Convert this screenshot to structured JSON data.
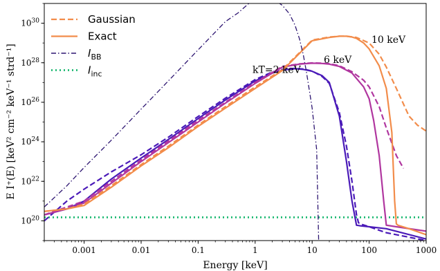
{
  "chart_data": {
    "type": "line",
    "title": "",
    "xlabel": "Energy [keV]",
    "ylabel": "E I⁺(E)  [keV² cm⁻² keV⁻¹ strd⁻¹]",
    "xscale": "log",
    "yscale": "log",
    "xlim": [
      0.0002,
      1000
    ],
    "ylim": [
      1e+19,
      1e+31
    ],
    "xticks": [
      {
        "value": 0.001,
        "label": "0.001"
      },
      {
        "value": 0.01,
        "label": "0.01"
      },
      {
        "value": 0.1,
        "label": "0.1"
      },
      {
        "value": 1,
        "label": "1"
      },
      {
        "value": 10,
        "label": "10"
      },
      {
        "value": 100,
        "label": "100"
      },
      {
        "value": 1000,
        "label": "1000"
      }
    ],
    "yticks": [
      {
        "value": 1e+20,
        "base": "10",
        "exp": "20"
      },
      {
        "value": 1e+22,
        "base": "10",
        "exp": "22"
      },
      {
        "value": 1e+24,
        "base": "10",
        "exp": "24"
      },
      {
        "value": 1e+26,
        "base": "10",
        "exp": "26"
      },
      {
        "value": 1e+28,
        "base": "10",
        "exp": "28"
      },
      {
        "value": 1e+30,
        "base": "10",
        "exp": "30"
      }
    ],
    "legend": {
      "placement": "top-left",
      "entries": [
        {
          "label": "Gaussian",
          "style": "dashed",
          "color": "#f28c4a"
        },
        {
          "label": "Exact",
          "style": "solid",
          "color": "#f28c4a"
        },
        {
          "label": "I",
          "sub": "BB",
          "style": "dashdot",
          "color": "#2c1470"
        },
        {
          "label": "I",
          "sub": "inc",
          "style": "dotted",
          "color": "#1ab870"
        }
      ]
    },
    "annotations": [
      {
        "text": "10 keV",
        "x": 110,
        "y": 1e+29
      },
      {
        "text": "6 keV",
        "x": 16,
        "y": 1e+28
      },
      {
        "text": "kT=2 keV",
        "x": 0.9,
        "y": 3e+27
      }
    ],
    "colors": {
      "kT2": "#4a1ab8",
      "kT6": "#b0369f",
      "kT10": "#f28c4a",
      "bb": "#2c1470",
      "inc": "#1ab870"
    },
    "series": [
      {
        "kind": "exact",
        "color_key": "kT2",
        "style": "solid",
        "x": [
          0.0002,
          0.0005,
          0.001,
          0.003,
          0.01,
          0.03,
          0.1,
          0.3,
          1,
          2,
          3,
          4,
          5,
          7,
          10,
          15,
          20,
          30,
          40,
          50,
          57,
          60,
          65,
          70,
          100,
          200,
          1000
        ],
        "y": [
          2e+20,
          4e+20,
          1e+21,
          1.3e+22,
          1.5e+23,
          1.3e+24,
          1.5e+25,
          1.3e+26,
          1.2e+27,
          3e+27,
          4.2e+27,
          4.7e+27,
          5e+27,
          4.6e+27,
          3.7e+27,
          2.2e+27,
          1e+27,
          2e+25,
          1e+23,
          1e+21,
          1.3e+20,
          6e+19,
          5.8e+19,
          5.6e+19,
          5e+19,
          4e+19,
          1.2e+19
        ]
      },
      {
        "kind": "gaussian",
        "color_key": "kT2",
        "style": "dashed",
        "x": [
          0.0002,
          0.0005,
          0.001,
          0.003,
          0.01,
          0.03,
          0.1,
          0.3,
          1,
          2,
          3,
          4,
          5,
          7,
          10,
          15,
          20,
          30,
          40,
          50,
          60,
          65,
          70,
          100,
          200,
          1000
        ],
        "y": [
          1e+20,
          1e+21,
          4e+21,
          3e+22,
          2.2e+23,
          1.7e+24,
          1.9e+25,
          1.6e+26,
          1.4e+27,
          3.4e+27,
          4.6e+27,
          5e+27,
          5.2e+27,
          4.8e+27,
          3.8e+27,
          2e+27,
          9e+26,
          3e+25,
          6e+23,
          1e+22,
          2e+20,
          8e+19,
          7e+19,
          5e+19,
          2.5e+19,
          1e+19
        ]
      },
      {
        "kind": "exact",
        "color_key": "kT6",
        "style": "solid",
        "x": [
          0.0002,
          0.0005,
          0.001,
          0.003,
          0.01,
          0.03,
          0.1,
          0.3,
          1,
          3,
          6,
          10,
          15,
          20,
          30,
          50,
          80,
          100,
          120,
          150,
          180,
          200,
          300,
          1000
        ],
        "y": [
          2e+20,
          4e+20,
          8e+20,
          8e+21,
          1e+23,
          9e+23,
          1e+25,
          9e+25,
          9e+26,
          6e+27,
          8.5e+27,
          9.5e+27,
          9.2e+27,
          8.5e+27,
          6.5e+27,
          3e+27,
          6e+26,
          1.5e+26,
          1.2e+25,
          2e+23,
          1e+21,
          6e+19,
          5e+19,
          3e+19
        ]
      },
      {
        "kind": "gaussian",
        "color_key": "kT6",
        "style": "dashed",
        "x": [
          0.0002,
          0.0005,
          0.001,
          0.003,
          0.01,
          0.03,
          0.1,
          0.3,
          1,
          3,
          6,
          10,
          15,
          20,
          30,
          50,
          80,
          100,
          150,
          200,
          300,
          400
        ],
        "y": [
          2e+20,
          5e+20,
          1e+21,
          1e+22,
          1.2e+23,
          1.1e+24,
          1.2e+25,
          1e+26,
          1e+27,
          6.5e+27,
          8.8e+27,
          9.8e+27,
          9.5e+27,
          9e+27,
          7e+27,
          3.5e+27,
          1.3e+27,
          6e+26,
          6e+25,
          5e+24,
          2e+23,
          4.5e+22
        ]
      },
      {
        "kind": "exact",
        "color_key": "kT10",
        "style": "solid",
        "x": [
          0.0002,
          0.0005,
          0.001,
          0.003,
          0.01,
          0.03,
          0.1,
          0.3,
          1,
          3,
          10,
          20,
          30,
          40,
          50,
          60,
          80,
          100,
          150,
          200,
          250,
          280,
          300,
          320,
          350,
          500,
          1000
        ],
        "y": [
          3e+20,
          4e+20,
          6e+20,
          5e+21,
          6e+22,
          5e+23,
          6e+24,
          5e+25,
          5e+26,
          4e+27,
          1.3e+29,
          1.9e+29,
          2.2e+29,
          2.2e+29,
          2e+29,
          1.7e+29,
          1e+29,
          5e+28,
          7e+27,
          5e+26,
          3e+24,
          1e+21,
          7e+19,
          6e+19,
          5.5e+19,
          4e+19,
          2e+19
        ]
      },
      {
        "kind": "gaussian",
        "color_key": "kT10",
        "style": "dashed",
        "x": [
          0.0002,
          0.0005,
          0.001,
          0.003,
          0.01,
          0.03,
          0.1,
          0.3,
          1,
          3,
          10,
          20,
          30,
          40,
          60,
          100,
          150,
          200,
          300,
          500,
          700,
          1000
        ],
        "y": [
          3e+20,
          4e+20,
          7e+20,
          6e+21,
          7e+22,
          6e+23,
          7e+24,
          6e+25,
          6e+26,
          4.5e+27,
          1.4e+29,
          2e+29,
          2.2e+29,
          2.2e+29,
          1.9e+29,
          1e+29,
          2.7e+28,
          6e+27,
          5e+26,
          2e+25,
          7e+24,
          3.5e+24
        ]
      },
      {
        "kind": "bb",
        "color_key": "bb",
        "style": "dashdot",
        "x": [
          0.0002,
          0.0005,
          0.001,
          0.003,
          0.01,
          0.03,
          0.1,
          0.3,
          0.5,
          0.8,
          1,
          1.5,
          2,
          3,
          4,
          5,
          6,
          7,
          8,
          10,
          12,
          13
        ],
        "y": [
          5e+20,
          6e+21,
          5e+22,
          1.2e+24,
          4.5e+25,
          1.2e+27,
          4.5e+28,
          1.2e+30,
          3.3e+30,
          1.08e+31,
          1.5e+31,
          2.1e+31,
          1.8e+31,
          8e+30,
          3e+30,
          8e+29,
          1.6e+29,
          2.5e+28,
          3e+27,
          5e+25,
          4e+23,
          1e+19
        ]
      },
      {
        "kind": "inc",
        "color_key": "inc",
        "style": "dotted",
        "x": [
          0.0002,
          1000
        ],
        "y": [
          1.5e+20,
          1.5e+20
        ]
      }
    ]
  }
}
